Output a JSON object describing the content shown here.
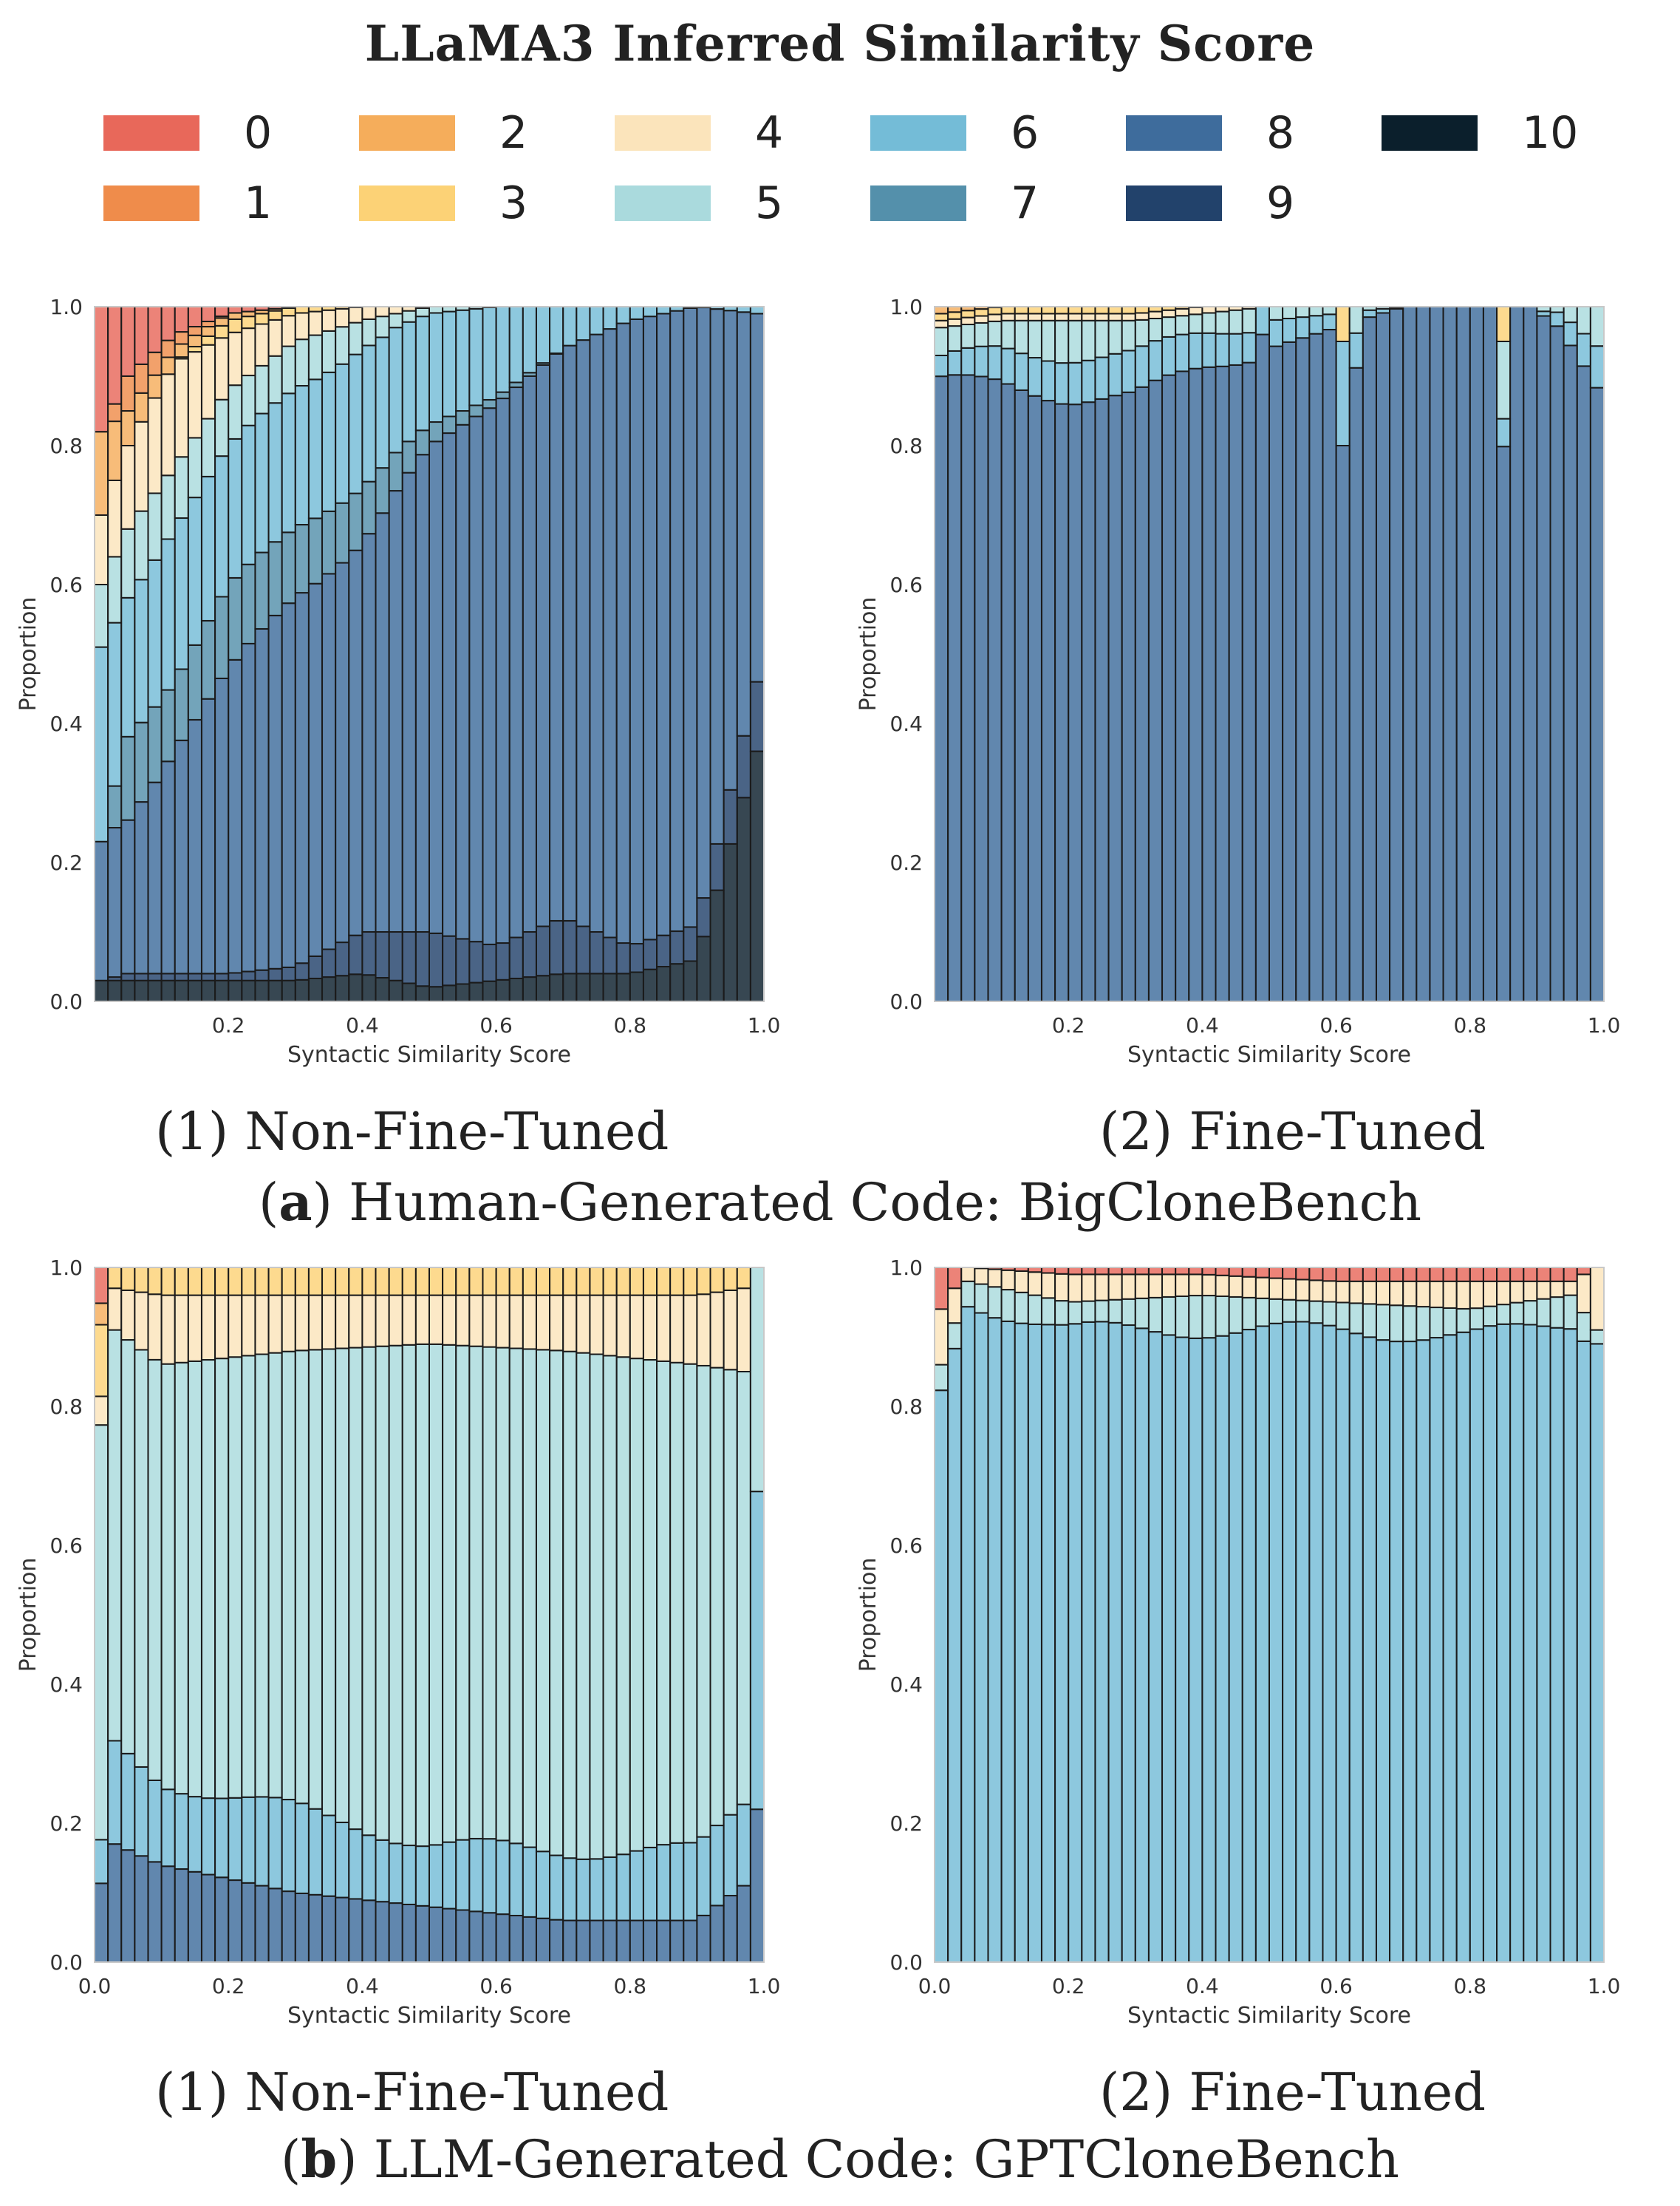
{
  "title": "LLaMA3 Inferred Similarity Score",
  "legend": [
    {
      "label": "0",
      "color": "#e8685a"
    },
    {
      "label": "1",
      "color": "#ef8c4b"
    },
    {
      "label": "2",
      "color": "#f5ad5b"
    },
    {
      "label": "3",
      "color": "#fcd276"
    },
    {
      "label": "4",
      "color": "#fbe4bb"
    },
    {
      "label": "5",
      "color": "#aadadd"
    },
    {
      "label": "6",
      "color": "#74bcd7"
    },
    {
      "label": "7",
      "color": "#5490ab"
    },
    {
      "label": "8",
      "color": "#3e6c9c"
    },
    {
      "label": "9",
      "color": "#22426b"
    },
    {
      "label": "10",
      "color": "#0b1f2c"
    }
  ],
  "panels": [
    {
      "caption": "(1) Non-Fine-Tuned",
      "chart_data": {
        "type": "bar",
        "stacked": true,
        "xlabel": "Syntactic Similarity Score",
        "ylabel": "Proportion",
        "xticks": [
          "0.2",
          "0.4",
          "0.6",
          "0.8",
          "1.0"
        ],
        "yticks": [
          "0.0",
          "0.2",
          "0.4",
          "0.6",
          "0.8",
          "1.0"
        ],
        "xlim": [
          0,
          1
        ],
        "ylim": [
          0,
          1
        ],
        "bins": 50,
        "anchors": [
          {
            "x": 0.01,
            "v": [
              0.18,
              0.0,
              0.12,
              0.0,
              0.1,
              0.09,
              0.28,
              0.0,
              0.2,
              0.0,
              0.03
            ]
          },
          {
            "x": 0.05,
            "v": [
              0.1,
              0.05,
              0.05,
              0.0,
              0.12,
              0.09,
              0.2,
              0.12,
              0.23,
              0.01,
              0.03
            ]
          },
          {
            "x": 0.12,
            "v": [
              0.04,
              0.02,
              0.02,
              0.0,
              0.15,
              0.08,
              0.22,
              0.1,
              0.33,
              0.01,
              0.03
            ]
          },
          {
            "x": 0.2,
            "v": [
              0.01,
              0.0,
              0.01,
              0.02,
              0.08,
              0.09,
              0.2,
              0.12,
              0.43,
              0.01,
              0.03
            ]
          },
          {
            "x": 0.3,
            "v": [
              0.0,
              0.0,
              0.0,
              0.01,
              0.04,
              0.07,
              0.2,
              0.1,
              0.53,
              0.02,
              0.03
            ]
          },
          {
            "x": 0.4,
            "v": [
              0.0,
              0.0,
              0.0,
              0.0,
              0.02,
              0.03,
              0.2,
              0.08,
              0.57,
              0.06,
              0.04
            ]
          },
          {
            "x": 0.5,
            "v": [
              0.0,
              0.0,
              0.0,
              0.0,
              0.0,
              0.01,
              0.16,
              0.03,
              0.7,
              0.08,
              0.02
            ]
          },
          {
            "x": 0.6,
            "v": [
              0.0,
              0.0,
              0.0,
              0.0,
              0.0,
              0.0,
              0.13,
              0.01,
              0.78,
              0.05,
              0.03
            ]
          },
          {
            "x": 0.7,
            "v": [
              0.0,
              0.0,
              0.0,
              0.0,
              0.0,
              0.0,
              0.06,
              0.0,
              0.82,
              0.08,
              0.04
            ]
          },
          {
            "x": 0.8,
            "v": [
              0.0,
              0.0,
              0.0,
              0.0,
              0.0,
              0.0,
              0.02,
              0.0,
              0.9,
              0.04,
              0.04
            ]
          },
          {
            "x": 0.9,
            "v": [
              0.0,
              0.0,
              0.0,
              0.0,
              0.0,
              0.0,
              0.0,
              0.0,
              0.89,
              0.05,
              0.06
            ]
          },
          {
            "x": 0.99,
            "v": [
              0.0,
              0.0,
              0.0,
              0.0,
              0.0,
              0.0,
              0.01,
              0.0,
              0.53,
              0.1,
              0.36
            ]
          }
        ]
      }
    },
    {
      "caption": "(2) Fine-Tuned",
      "chart_data": {
        "type": "bar",
        "stacked": true,
        "xlabel": "Syntactic Similarity Score",
        "ylabel": "Proportion",
        "xticks": [
          "0.2",
          "0.4",
          "0.6",
          "0.8",
          "1.0"
        ],
        "yticks": [
          "0.0",
          "0.2",
          "0.4",
          "0.6",
          "0.8",
          "1.0"
        ],
        "xlim": [
          0,
          1
        ],
        "ylim": [
          0,
          1
        ],
        "bins": 50,
        "anchors": [
          {
            "x": 0.01,
            "v": [
              0.0,
              0.0,
              0.01,
              0.01,
              0.01,
              0.05,
              0.03,
              0.0,
              0.89,
              0.0,
              0.0
            ]
          },
          {
            "x": 0.1,
            "v": [
              0.0,
              0.0,
              0.0,
              0.01,
              0.01,
              0.04,
              0.05,
              0.0,
              0.89,
              0.0,
              0.0
            ]
          },
          {
            "x": 0.2,
            "v": [
              0.0,
              0.0,
              0.0,
              0.01,
              0.01,
              0.05,
              0.06,
              0.0,
              0.87,
              0.0,
              0.0
            ]
          },
          {
            "x": 0.3,
            "v": [
              0.0,
              0.0,
              0.0,
              0.01,
              0.01,
              0.05,
              0.06,
              0.0,
              0.87,
              0.0,
              0.0
            ]
          },
          {
            "x": 0.4,
            "v": [
              0.0,
              0.0,
              0.0,
              0.0,
              0.01,
              0.03,
              0.05,
              0.0,
              0.91,
              0.0,
              0.0
            ]
          },
          {
            "x": 0.5,
            "v": [
              0.0,
              0.0,
              0.0,
              0.0,
              0.0,
              0.02,
              0.04,
              0.0,
              0.94,
              0.0,
              0.0
            ]
          },
          {
            "x": 0.6,
            "v": [
              0.0,
              0.0,
              0.0,
              0.0,
              0.0,
              0.01,
              0.02,
              0.0,
              0.97,
              0.0,
              0.0
            ]
          },
          {
            "x": 0.7,
            "v": [
              0.0,
              0.0,
              0.0,
              0.0,
              0.0,
              0.0,
              0.0,
              0.0,
              1.0,
              0.0,
              0.0
            ]
          },
          {
            "x": 0.8,
            "v": [
              0.0,
              0.0,
              0.0,
              0.0,
              0.0,
              0.0,
              0.0,
              0.0,
              1.0,
              0.0,
              0.0
            ]
          },
          {
            "x": 0.9,
            "v": [
              0.0,
              0.0,
              0.0,
              0.0,
              0.0,
              0.0,
              0.0,
              0.0,
              1.0,
              0.0,
              0.0
            ]
          },
          {
            "x": 0.99,
            "v": [
              0.0,
              0.0,
              0.0,
              0.0,
              0.0,
              0.06,
              0.06,
              0.0,
              0.88,
              0.0,
              0.0
            ]
          }
        ],
        "overrides": [
          {
            "bin": 24,
            "v": [
              0.0,
              0.0,
              0.0,
              0.0,
              0.0,
              0.0,
              0.04,
              0.0,
              0.96,
              0.0,
              0.0
            ]
          },
          {
            "bin": 30,
            "v": [
              0.0,
              0.0,
              0.0,
              0.05,
              0.0,
              0.0,
              0.15,
              0.0,
              0.8,
              0.0,
              0.0
            ]
          },
          {
            "bin": 31,
            "v": [
              0.0,
              0.0,
              0.0,
              0.0,
              0.0,
              0.05,
              0.05,
              0.0,
              0.9,
              0.0,
              0.0
            ]
          },
          {
            "bin": 42,
            "v": [
              0.0,
              0.0,
              0.0,
              0.05,
              0.0,
              0.11,
              0.04,
              0.0,
              0.8,
              0.0,
              0.0
            ]
          }
        ]
      }
    },
    {
      "caption": "(1) Non-Fine-Tuned",
      "chart_data": {
        "type": "bar",
        "stacked": true,
        "xlabel": "Syntactic Similarity Score",
        "ylabel": "Proportion",
        "xticks": [
          "0.0",
          "0.2",
          "0.4",
          "0.6",
          "0.8",
          "1.0"
        ],
        "yticks": [
          "0.0",
          "0.2",
          "0.4",
          "0.6",
          "0.8",
          "1.0"
        ],
        "xlim": [
          0,
          1
        ],
        "ylim": [
          0,
          1
        ],
        "bins": 50,
        "anchors": [
          {
            "x": 0.01,
            "v": [
              0.05,
              0.0,
              0.03,
              0.1,
              0.04,
              0.59,
              0.05,
              0.0,
              0.11,
              0.0,
              0.0
            ]
          },
          {
            "x": 0.03,
            "v": [
              0.0,
              0.0,
              0.0,
              0.03,
              0.06,
              0.6,
              0.14,
              0.0,
              0.17,
              0.0,
              0.0
            ]
          },
          {
            "x": 0.1,
            "v": [
              0.0,
              0.0,
              0.0,
              0.04,
              0.1,
              0.6,
              0.12,
              0.0,
              0.14,
              0.0,
              0.0
            ]
          },
          {
            "x": 0.3,
            "v": [
              0.0,
              0.0,
              0.0,
              0.04,
              0.08,
              0.66,
              0.12,
              0.0,
              0.1,
              0.0,
              0.0
            ]
          },
          {
            "x": 0.5,
            "v": [
              0.0,
              0.0,
              0.0,
              0.04,
              0.07,
              0.72,
              0.09,
              0.0,
              0.08,
              0.0,
              0.0
            ]
          },
          {
            "x": 0.7,
            "v": [
              0.0,
              0.0,
              0.0,
              0.04,
              0.08,
              0.72,
              0.1,
              0.0,
              0.06,
              0.0,
              0.0
            ]
          },
          {
            "x": 0.9,
            "v": [
              0.0,
              0.0,
              0.0,
              0.04,
              0.1,
              0.7,
              0.1,
              0.0,
              0.06,
              0.0,
              0.0
            ]
          },
          {
            "x": 0.97,
            "v": [
              0.0,
              0.0,
              0.0,
              0.03,
              0.12,
              0.62,
              0.12,
              0.0,
              0.11,
              0.0,
              0.0
            ]
          },
          {
            "x": 0.99,
            "v": [
              0.0,
              0.0,
              0.0,
              0.0,
              0.0,
              0.33,
              0.45,
              0.0,
              0.22,
              0.0,
              0.0
            ]
          }
        ]
      }
    },
    {
      "caption": "(2) Fine-Tuned",
      "chart_data": {
        "type": "bar",
        "stacked": true,
        "xlabel": "Syntactic Similarity Score",
        "ylabel": "Proportion",
        "xticks": [
          "0.0",
          "0.2",
          "0.4",
          "0.6",
          "0.8",
          "1.0"
        ],
        "yticks": [
          "0.0",
          "0.2",
          "0.4",
          "0.6",
          "0.8",
          "1.0"
        ],
        "xlim": [
          0,
          1
        ],
        "ylim": [
          0,
          1
        ],
        "bins": 50,
        "anchors": [
          {
            "x": 0.01,
            "v": [
              0.06,
              0.0,
              0.0,
              0.0,
              0.08,
              0.04,
              0.82,
              0.0,
              0.0,
              0.0,
              0.0
            ]
          },
          {
            "x": 0.05,
            "v": [
              0.0,
              0.0,
              0.0,
              0.0,
              0.02,
              0.03,
              0.95,
              0.0,
              0.0,
              0.0,
              0.0
            ]
          },
          {
            "x": 0.2,
            "v": [
              0.01,
              0.0,
              0.0,
              0.0,
              0.04,
              0.04,
              0.91,
              0.0,
              0.0,
              0.0,
              0.0
            ]
          },
          {
            "x": 0.4,
            "v": [
              0.01,
              0.0,
              0.0,
              0.0,
              0.03,
              0.05,
              0.91,
              0.0,
              0.0,
              0.0,
              0.0
            ]
          },
          {
            "x": 0.6,
            "v": [
              0.02,
              0.0,
              0.0,
              0.0,
              0.03,
              0.04,
              0.91,
              0.0,
              0.0,
              0.0,
              0.0
            ]
          },
          {
            "x": 0.8,
            "v": [
              0.02,
              0.0,
              0.0,
              0.0,
              0.04,
              0.04,
              0.9,
              0.0,
              0.0,
              0.0,
              0.0
            ]
          },
          {
            "x": 0.95,
            "v": [
              0.02,
              0.0,
              0.0,
              0.0,
              0.02,
              0.04,
              0.92,
              0.0,
              0.0,
              0.0,
              0.0
            ]
          },
          {
            "x": 0.99,
            "v": [
              0.0,
              0.0,
              0.0,
              0.0,
              0.09,
              0.02,
              0.89,
              0.0,
              0.0,
              0.0,
              0.0
            ]
          }
        ]
      }
    }
  ],
  "group_captions": [
    {
      "label": "a",
      "text": ") Human-Generated Code: BigCloneBench",
      "open": "("
    },
    {
      "label": "b",
      "text": ") LLM-Generated Code: GPTCloneBench",
      "open": "("
    }
  ]
}
